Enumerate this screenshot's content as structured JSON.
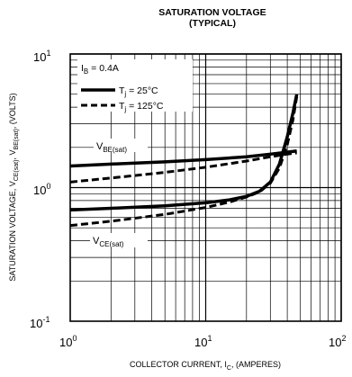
{
  "chart_data": {
    "type": "line",
    "title": "SATURATION VOLTAGE",
    "subtitle": "(TYPICAL)",
    "xlabel": "COLLECTOR CURRENT, I_C, (AMPERES)",
    "ylabel": "SATURATION VOLTAGE, V_CE(sat), V_BE(sat), (VOLTS)",
    "x_scale": "log",
    "y_scale": "log",
    "xlim": [
      1,
      100
    ],
    "ylim": [
      0.1,
      10
    ],
    "grid": true,
    "x_ticks": [
      {
        "base": "10",
        "exp": "0"
      },
      {
        "base": "10",
        "exp": "1"
      },
      {
        "base": "10",
        "exp": "2"
      }
    ],
    "y_ticks": [
      {
        "base": "10",
        "exp": "1"
      },
      {
        "base": "10",
        "exp": "0"
      },
      {
        "base": "10",
        "exp": "-1"
      }
    ],
    "legend": {
      "position": "top-left",
      "condition": "I_B = 0.4A",
      "entries": [
        {
          "label": "T_j = 25°C",
          "style": "solid"
        },
        {
          "label": "T_j = 125°C",
          "style": "dashed"
        }
      ]
    },
    "annotations": [
      {
        "label": "V_BE(sat)"
      },
      {
        "label": "V_CE(sat)"
      }
    ],
    "series": [
      {
        "curve": "V_BE(sat)",
        "temp": "25°C",
        "style": "solid",
        "x": [
          1,
          2,
          5,
          10,
          20,
          30,
          40,
          47
        ],
        "y": [
          1.45,
          1.5,
          1.56,
          1.62,
          1.7,
          1.78,
          1.84,
          1.88
        ]
      },
      {
        "curve": "V_BE(sat)",
        "temp": "125°C",
        "style": "dashed",
        "x": [
          1,
          2,
          5,
          10,
          20,
          30,
          40,
          47
        ],
        "y": [
          1.1,
          1.18,
          1.3,
          1.42,
          1.58,
          1.7,
          1.78,
          1.82
        ]
      },
      {
        "curve": "V_CE(sat)",
        "temp": "25°C",
        "style": "solid",
        "x": [
          1,
          2,
          5,
          10,
          15,
          20,
          25,
          30,
          35,
          40,
          44,
          47
        ],
        "y": [
          0.68,
          0.7,
          0.73,
          0.77,
          0.81,
          0.86,
          0.94,
          1.1,
          1.5,
          2.4,
          3.6,
          5.0
        ]
      },
      {
        "curve": "V_CE(sat)",
        "temp": "125°C",
        "style": "dashed",
        "x": [
          1,
          2,
          5,
          10,
          15,
          20,
          25,
          30,
          35,
          40,
          44,
          47
        ],
        "y": [
          0.52,
          0.56,
          0.63,
          0.71,
          0.78,
          0.85,
          0.93,
          1.08,
          1.4,
          2.1,
          3.2,
          4.8
        ]
      }
    ]
  }
}
